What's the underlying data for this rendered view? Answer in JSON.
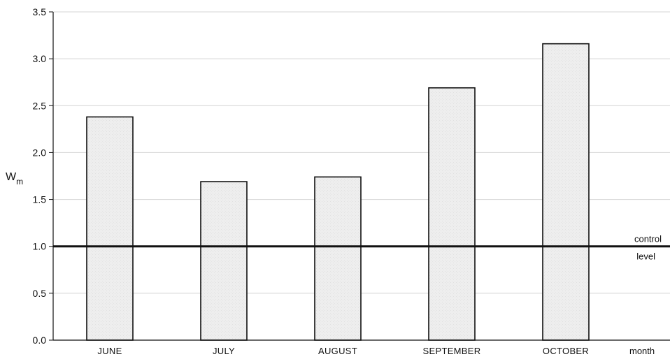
{
  "chart_data": {
    "type": "bar",
    "categories": [
      "JUNE",
      "JULY",
      "AUGUST",
      "SEPTEMBER",
      "OCTOBER"
    ],
    "values": [
      2.38,
      1.69,
      1.74,
      2.69,
      3.16
    ],
    "xlabel": "month",
    "ylabel_main": "W",
    "ylabel_sub": "m",
    "ylim": [
      0,
      3.5
    ],
    "yticks": [
      "0.0",
      "0.5",
      "1.0",
      "1.5",
      "2.0",
      "2.5",
      "3.0",
      "3.5"
    ],
    "grid": true,
    "reference_line": {
      "value": 1.0,
      "label_line1": "control",
      "label_line2": "level"
    },
    "colors": {
      "bar_fill": "#ececec",
      "bar_stroke": "#111111",
      "reference_line": "#111111",
      "grid": "#d4d4d4"
    }
  }
}
